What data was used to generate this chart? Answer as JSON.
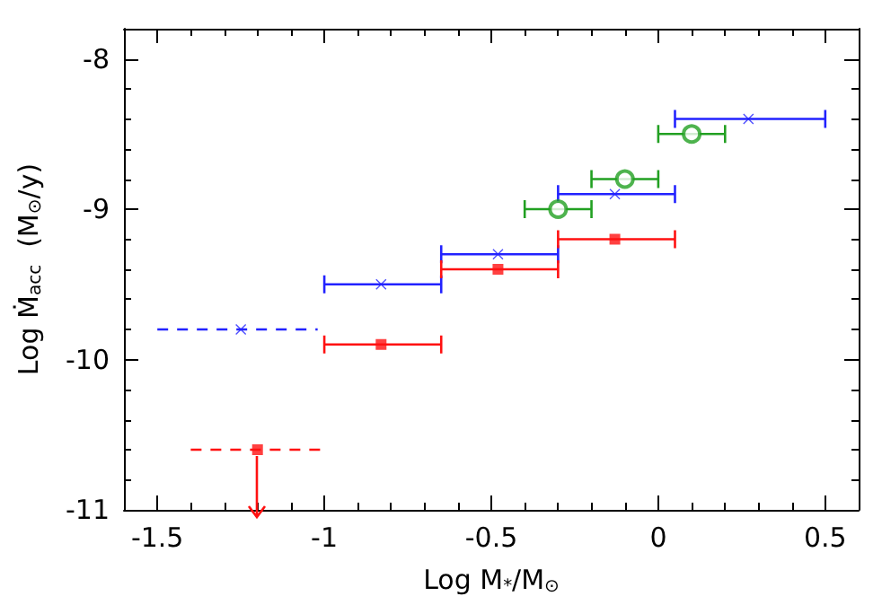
{
  "chart_data": {
    "type": "scatter",
    "xlabel": "Log M$_{*}$/M$_{⊙}$",
    "ylabel": "Log Ṁ$_{acc}$  (M$_{⊙}$/y)",
    "xlim": [
      -1.6,
      0.6
    ],
    "ylim": [
      -11,
      -7.8
    ],
    "xticks": [
      -1.5,
      {
        "value": -1.4,
        "label": null
      },
      {
        "value": -1.3,
        "label": null
      },
      {
        "value": -1.2,
        "label": null
      },
      {
        "value": -1.1,
        "label": null
      },
      -1,
      {
        "value": -0.9,
        "label": null
      },
      {
        "value": -0.8,
        "label": null
      },
      {
        "value": -0.7,
        "label": null
      },
      {
        "value": -0.6,
        "label": null
      },
      -0.5,
      {
        "value": -0.4,
        "label": null
      },
      {
        "value": -0.3,
        "label": null
      },
      {
        "value": -0.2,
        "label": null
      },
      {
        "value": -0.1,
        "label": null
      },
      0,
      {
        "value": 0.1,
        "label": null
      },
      {
        "value": 0.2,
        "label": null
      },
      {
        "value": 0.3,
        "label": null
      },
      {
        "value": 0.4,
        "label": null
      },
      0.5
    ],
    "yticks": [
      -11,
      {
        "value": -10.8,
        "label": null
      },
      {
        "value": -10.6,
        "label": null
      },
      {
        "value": -10.4,
        "label": null
      },
      {
        "value": -10.2,
        "label": null
      },
      -10,
      {
        "value": -9.8,
        "label": null
      },
      {
        "value": -9.6,
        "label": null
      },
      {
        "value": -9.4,
        "label": null
      },
      {
        "value": -9.2,
        "label": null
      },
      -9,
      {
        "value": -8.8,
        "label": null
      },
      {
        "value": -8.6,
        "label": null
      },
      {
        "value": -8.4,
        "label": null
      },
      {
        "value": -8.2,
        "label": null
      },
      -8
    ],
    "grid": false,
    "series": [
      {
        "color": "#2222ff",
        "marker": "cross",
        "x": [
          -0.83,
          -0.48,
          -0.13,
          0.27
        ],
        "values": [
          -9.5,
          -9.3,
          -8.9,
          -8.4
        ],
        "xerrors": [
          [
            -1,
            -0.65
          ],
          [
            -0.65,
            -0.3
          ],
          [
            -0.3,
            0.05
          ],
          [
            0.05,
            0.5
          ]
        ]
      },
      {
        "color": "#2222ff",
        "marker": "cross",
        "line_style": "dashed",
        "x": [
          -1.25
        ],
        "values": [
          -9.8
        ],
        "xerrors": [
          [
            -1.5,
            -1.02
          ]
        ]
      },
      {
        "color": "#ff1111",
        "marker": "square",
        "x": [
          -0.83,
          -0.48,
          -0.13
        ],
        "values": [
          -9.9,
          -9.4,
          -9.2
        ],
        "xerrors": [
          [
            -1,
            -0.65
          ],
          [
            -0.65,
            -0.3
          ],
          [
            -0.3,
            0.05
          ]
        ]
      },
      {
        "color": "#ff1111",
        "marker": "square",
        "line_style": "dashed",
        "x": [
          -1.2
        ],
        "values": [
          -10.6
        ],
        "xerrors": [
          [
            -1.4,
            -1
          ]
        ]
      },
      {
        "color": "#22a022",
        "marker": "circle",
        "x": [
          -0.3,
          -0.1,
          0.1
        ],
        "values": [
          -9,
          -8.8,
          -8.5
        ],
        "xerrors": [
          [
            -0.4,
            -0.2
          ],
          [
            -0.2,
            0
          ],
          [
            0,
            0.2
          ]
        ]
      }
    ]
  }
}
